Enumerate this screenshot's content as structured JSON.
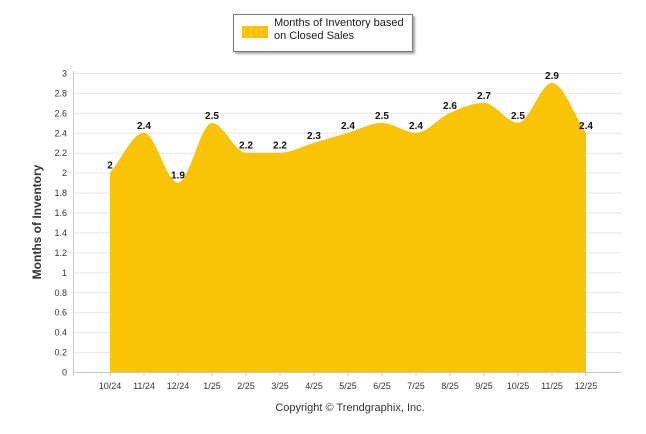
{
  "chart_data": {
    "type": "area",
    "categories": [
      "10/24",
      "11/24",
      "12/24",
      "1/25",
      "2/25",
      "3/25",
      "4/25",
      "5/25",
      "6/25",
      "7/25",
      "8/25",
      "9/25",
      "10/25",
      "11/25",
      "12/25"
    ],
    "series": [
      {
        "name": "Months of Inventory based on Closed Sales",
        "values": [
          2,
          2.4,
          1.9,
          2.5,
          2.2,
          2.2,
          2.3,
          2.4,
          2.5,
          2.4,
          2.6,
          2.7,
          2.5,
          2.9,
          2.4
        ],
        "color": "#F9C307"
      }
    ],
    "data_labels": [
      "2",
      "2.4",
      "1.9",
      "2.5",
      "2.2",
      "2.2",
      "2.3",
      "2.4",
      "2.5",
      "2.4",
      "2.6",
      "2.7",
      "2.5",
      "2.9",
      "2.4"
    ],
    "yticks": [
      "0",
      "0.2",
      "0.4",
      "0.6",
      "0.8",
      "1",
      "1.2",
      "1.4",
      "1.6",
      "1.8",
      "2",
      "2.2",
      "2.4",
      "2.6",
      "2.8",
      "3"
    ],
    "ylim": [
      0,
      3
    ],
    "ylabel": "Months of Inventory",
    "xlabel": "",
    "legend": {
      "label": "Months of Inventory based on Closed Sales",
      "position": "top-center"
    },
    "grid": true
  },
  "footer": {
    "copyright": "Copyright © Trendgraphix, Inc."
  }
}
